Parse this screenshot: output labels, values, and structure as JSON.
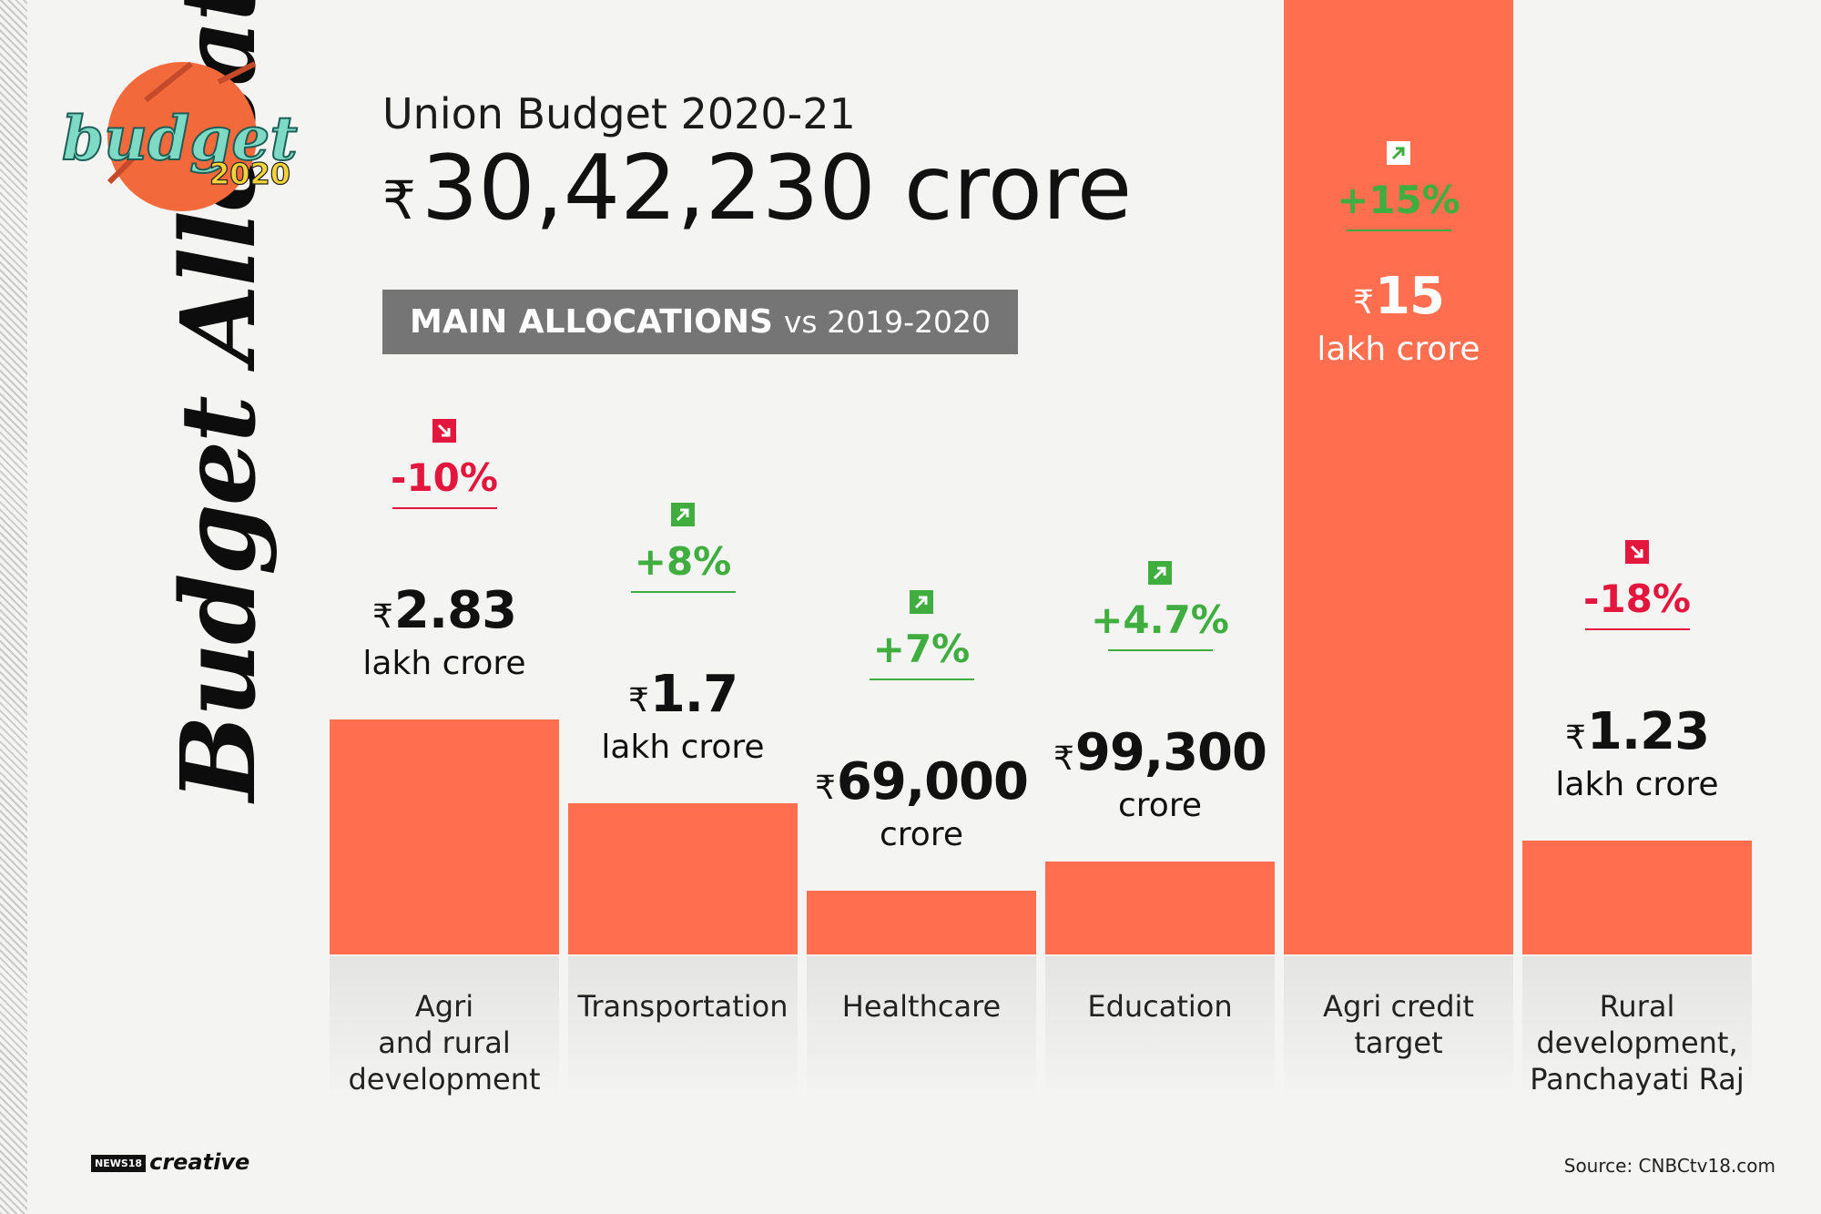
{
  "title": "Budget Allocations",
  "logo": {
    "word": "budget",
    "year": "2020"
  },
  "header": {
    "title": "Union Budget 2020-21",
    "total_symbol": "₹",
    "total_value": "30,42,230 crore"
  },
  "allocations_label": {
    "bold": "MAIN ALLOCATIONS",
    "rest": "vs 2019-2020"
  },
  "colors": {
    "bar": "#ff6f4f",
    "increase": "#3fae3f",
    "decrease": "#e3173e"
  },
  "chart_data": {
    "type": "bar",
    "unit": "lakh crore",
    "categories": [
      "Agri\nand rural\ndevelopment",
      "Transportation",
      "Healthcare",
      "Education",
      "Agri credit\ntarget",
      "Rural\ndevelopment,\nPanchayati Raj"
    ],
    "values": [
      2.83,
      1.7,
      0.69,
      0.993,
      15,
      1.23
    ],
    "value_labels": [
      {
        "symbol": "₹",
        "main": "2.83",
        "unit": "lakh crore"
      },
      {
        "symbol": "₹",
        "main": "1.7",
        "unit": "lakh crore"
      },
      {
        "symbol": "₹",
        "main": "69,000",
        "unit": "crore"
      },
      {
        "symbol": "₹",
        "main": "99,300",
        "unit": "crore"
      },
      {
        "symbol": "₹",
        "main": "15",
        "unit": "lakh crore"
      },
      {
        "symbol": "₹",
        "main": "1.23",
        "unit": "lakh crore"
      }
    ],
    "changes": [
      {
        "label": "-10%",
        "direction": "down"
      },
      {
        "label": "+8%",
        "direction": "up"
      },
      {
        "label": "+7%",
        "direction": "up"
      },
      {
        "label": "+4.7%",
        "direction": "up"
      },
      {
        "label": "+15%",
        "direction": "up"
      },
      {
        "label": "-18%",
        "direction": "down"
      }
    ]
  },
  "footer": {
    "brand_news": "NEWS18",
    "brand_creative": "creative",
    "source": "Source: CNBCtv18.com"
  }
}
